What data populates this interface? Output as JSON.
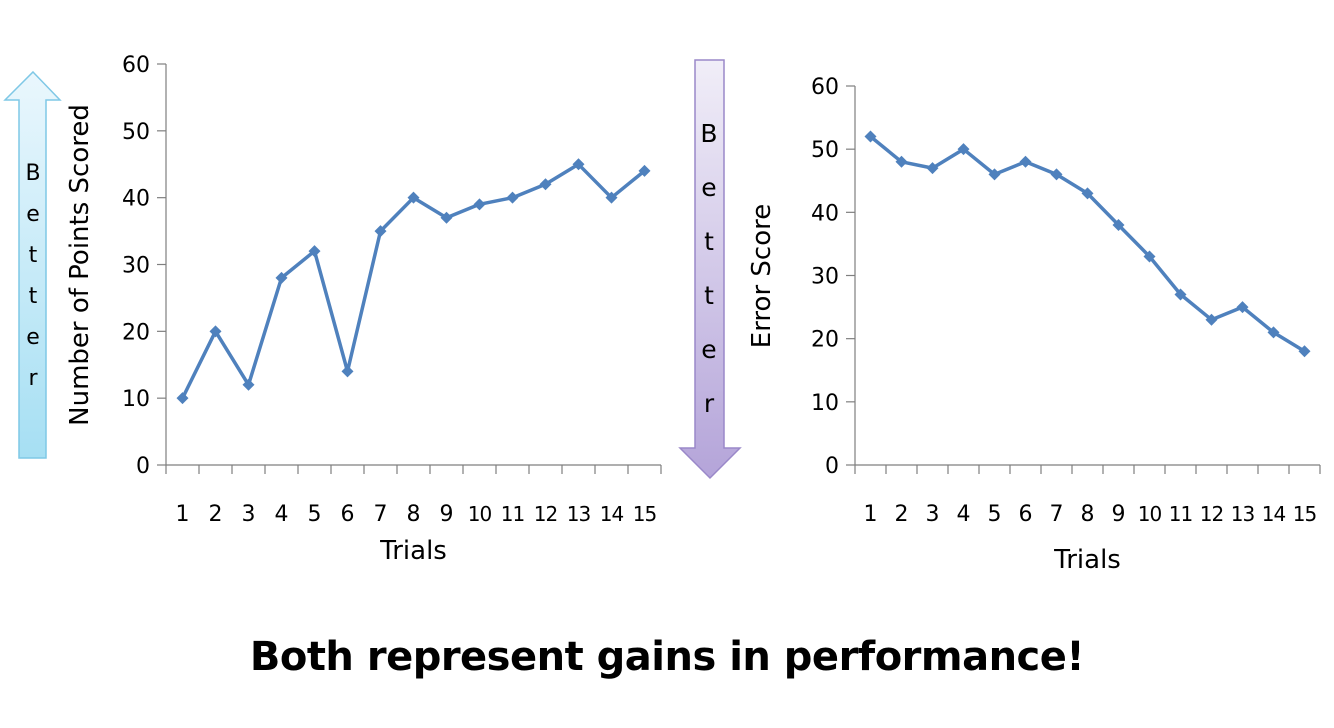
{
  "colors": {
    "line": "#4F81BD",
    "axis": "#7F7F7F",
    "text": "#000000",
    "up_arrow_fill_top": "#EAF7FD",
    "up_arrow_fill_bottom": "#A6DFF3",
    "up_arrow_stroke": "#7FC8E6",
    "down_arrow_fill_top": "#F1EEF8",
    "down_arrow_fill_bottom": "#B4A4D9",
    "down_arrow_stroke": "#9A88C9"
  },
  "arrows": {
    "up": {
      "direction": "up",
      "letters": [
        "B",
        "e",
        "t",
        "t",
        "e",
        "r"
      ]
    },
    "down": {
      "direction": "down",
      "letters": [
        "B",
        "e",
        "t",
        "t",
        "e",
        "r"
      ]
    }
  },
  "caption": "Both represent gains in performance!",
  "chart_data": [
    {
      "type": "line",
      "xlabel": "Trials",
      "ylabel": "Number of Points Scored",
      "ylim": [
        0,
        60
      ],
      "yticks": [
        0,
        10,
        20,
        30,
        40,
        50,
        60
      ],
      "categories": [
        "1",
        "2",
        "3",
        "4",
        "5",
        "6",
        "7",
        "8",
        "9",
        "10",
        "11",
        "12",
        "13",
        "14",
        "15"
      ],
      "marker": "diamond",
      "grid": false,
      "series": [
        {
          "values": [
            10,
            20,
            12,
            28,
            32,
            14,
            35,
            40,
            37,
            39,
            40,
            42,
            45,
            40,
            44
          ]
        }
      ]
    },
    {
      "type": "line",
      "xlabel": "Trials",
      "ylabel": "Error Score",
      "ylim": [
        0,
        60
      ],
      "yticks": [
        0,
        10,
        20,
        30,
        40,
        50,
        60
      ],
      "categories": [
        "1",
        "2",
        "3",
        "4",
        "5",
        "6",
        "7",
        "8",
        "9",
        "10",
        "11",
        "12",
        "13",
        "14",
        "15"
      ],
      "marker": "diamond",
      "grid": false,
      "series": [
        {
          "values": [
            52,
            48,
            47,
            50,
            46,
            48,
            46,
            43,
            38,
            33,
            27,
            23,
            25,
            21,
            18
          ]
        }
      ]
    }
  ]
}
